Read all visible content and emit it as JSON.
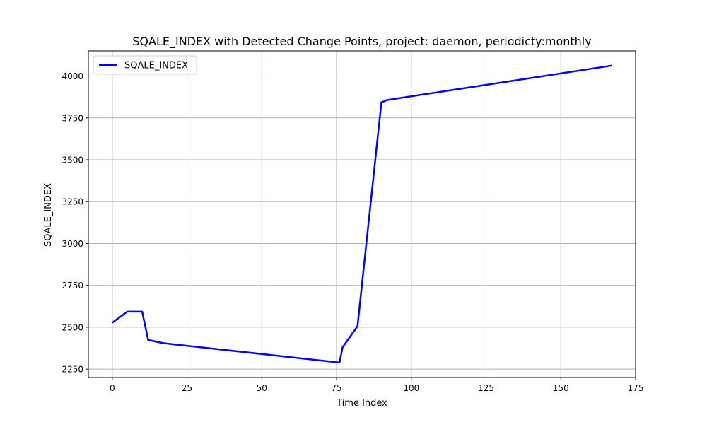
{
  "chart_data": {
    "type": "line",
    "title": "SQALE_INDEX with Detected Change Points, project: daemon, periodicty:monthly",
    "xlabel": "Time Index",
    "ylabel": "SQALE_INDEX",
    "xlim": [
      -8,
      175
    ],
    "ylim": [
      2200,
      4150
    ],
    "x_ticks": [
      0,
      25,
      50,
      75,
      100,
      125,
      150,
      175
    ],
    "y_ticks": [
      2250,
      2500,
      2750,
      3000,
      3250,
      3500,
      3750,
      4000
    ],
    "grid": true,
    "legend": {
      "position": "top-left"
    },
    "series": [
      {
        "name": "SQALE_INDEX",
        "color": "#0000ff",
        "points": [
          [
            0,
            2527
          ],
          [
            5,
            2593
          ],
          [
            10,
            2593
          ],
          [
            12,
            2424
          ],
          [
            17,
            2405
          ],
          [
            76,
            2289
          ],
          [
            77,
            2380
          ],
          [
            82,
            2507
          ],
          [
            90,
            3843
          ],
          [
            92,
            3857
          ],
          [
            167,
            4062
          ]
        ]
      }
    ]
  }
}
